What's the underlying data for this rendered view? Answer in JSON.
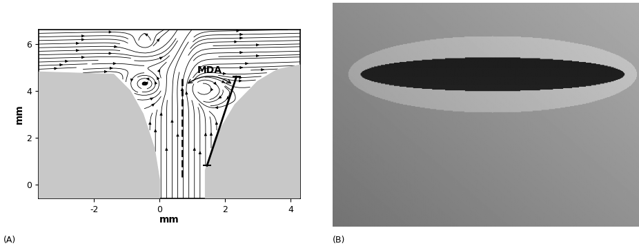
{
  "panel_labels": [
    "(A)",
    "(B)"
  ],
  "chart_data": {
    "type": "streamline",
    "xlabel": "mm",
    "ylabel": "mm",
    "xlim": [
      -3.7,
      4.3
    ],
    "ylim": [
      -0.6,
      6.6
    ],
    "xticks": [
      -2,
      0,
      2,
      4
    ],
    "yticks": [
      0,
      2,
      4,
      6
    ],
    "leaflets": [
      {
        "x": [
          -3.7,
          -1.4,
          -0.9,
          -0.5,
          -0.15,
          0.0,
          0.0,
          -3.7
        ],
        "y": [
          4.8,
          4.7,
          4.0,
          3.0,
          1.5,
          0.2,
          -0.6,
          -0.6
        ]
      },
      {
        "x": [
          1.4,
          1.4,
          1.7,
          2.3,
          3.0,
          3.6,
          4.3,
          4.3
        ],
        "y": [
          -0.6,
          0.6,
          2.0,
          3.4,
          4.4,
          4.9,
          5.1,
          -0.6
        ]
      }
    ],
    "jet_center": 0.7,
    "vortices": [
      {
        "x": -0.45,
        "y": 6.0,
        "spin": 1
      },
      {
        "x": 1.3,
        "y": 4.1,
        "spin": -1
      },
      {
        "x": -0.45,
        "y": 4.3,
        "spin": 1
      }
    ],
    "lines": [
      {
        "x": [
          0.7,
          0.7
        ],
        "y": [
          0.3,
          4.6
        ],
        "line_style": "dashed"
      },
      {
        "x": [
          1.45,
          2.35
        ],
        "y": [
          0.8,
          4.6
        ],
        "line_style": "solid"
      }
    ],
    "annotation": "MDA"
  }
}
